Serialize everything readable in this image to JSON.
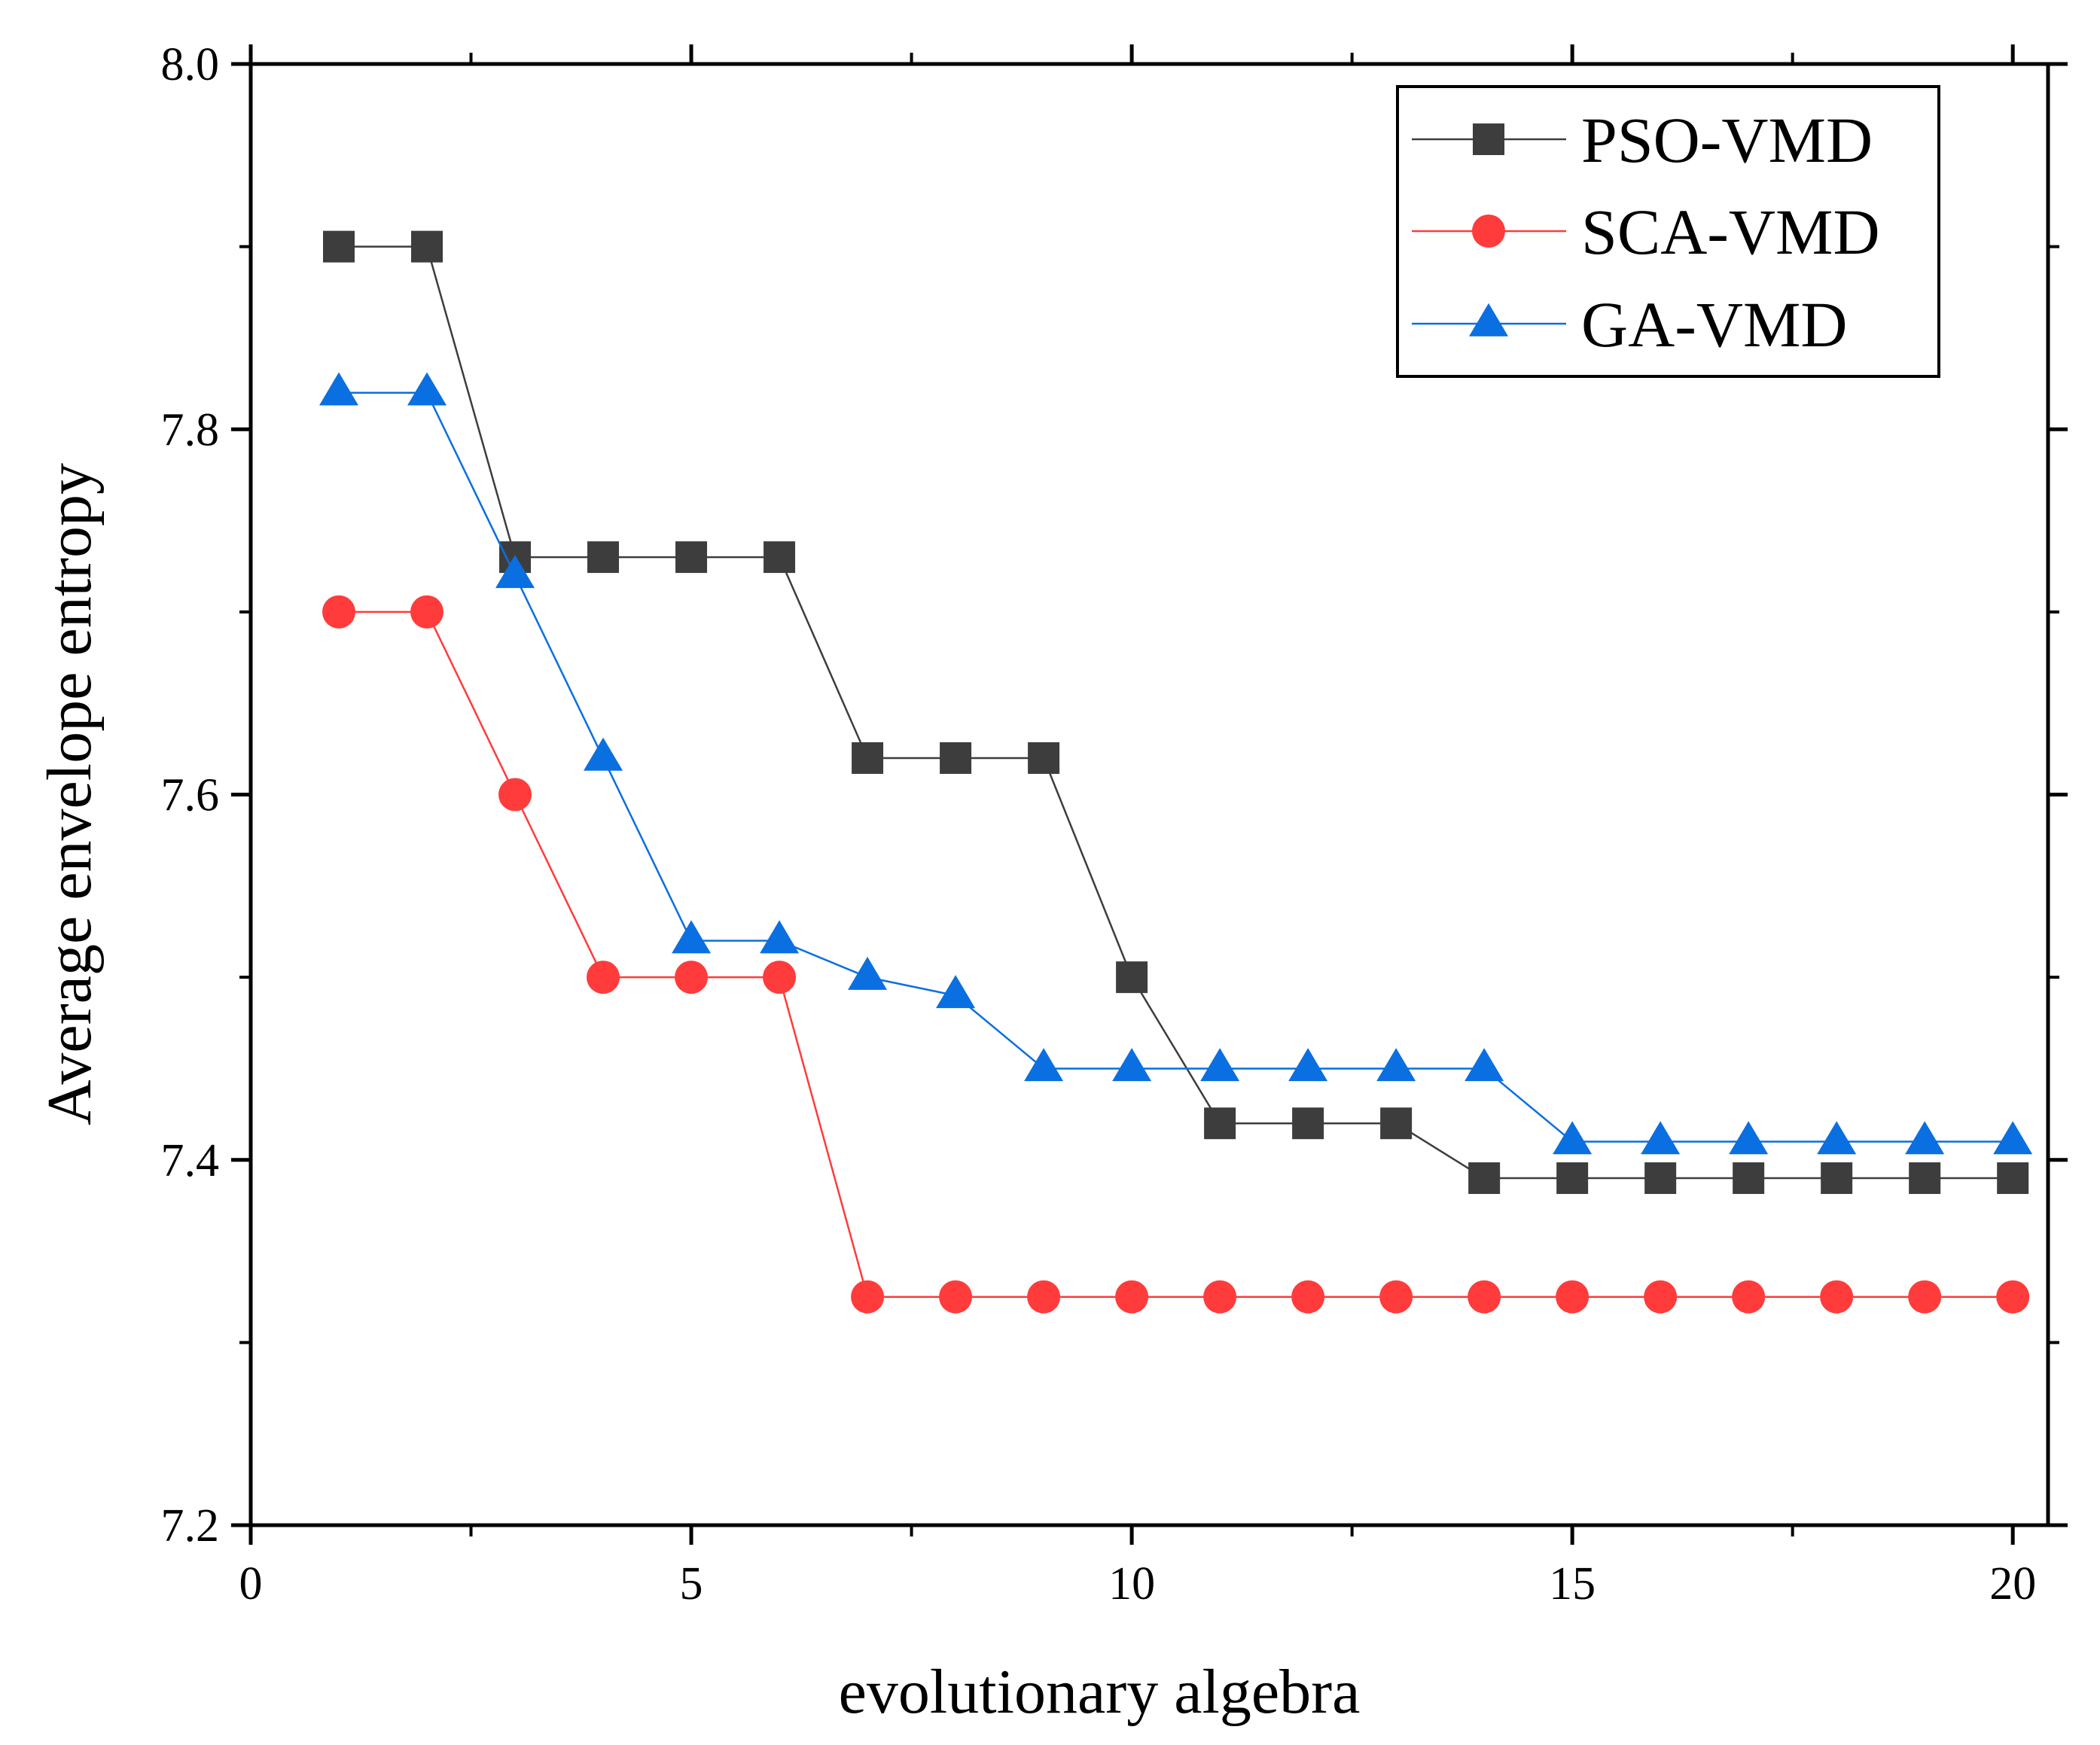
{
  "chart_data": {
    "type": "line",
    "title": "",
    "xlabel": "evolutionary algebra",
    "ylabel": "Average envelope entropy",
    "xlim": [
      0,
      20.4
    ],
    "ylim": [
      7.2,
      8.0
    ],
    "xticks": [
      0,
      5,
      10,
      15,
      20
    ],
    "xtick_labels": [
      "0",
      "5",
      "10",
      "15",
      "20"
    ],
    "xminor": [
      2.5,
      7.5,
      12.5,
      17.5
    ],
    "yticks": [
      7.2,
      7.4,
      7.6,
      7.8,
      8.0
    ],
    "ytick_labels": [
      "7.2",
      "7.4",
      "7.6",
      "7.8",
      "8.0"
    ],
    "yminor": [
      7.3,
      7.5,
      7.7,
      7.9
    ],
    "grid": false,
    "legend_position": "top-right",
    "x": [
      1,
      2,
      3,
      4,
      5,
      6,
      7,
      8,
      9,
      10,
      11,
      12,
      13,
      14,
      15,
      16,
      17,
      18,
      19,
      20
    ],
    "series": [
      {
        "name": "PSO-VMD",
        "color": "#3d3d3d",
        "marker": "square",
        "values": [
          7.9,
          7.9,
          7.73,
          7.73,
          7.73,
          7.73,
          7.62,
          7.62,
          7.62,
          7.5,
          7.42,
          7.42,
          7.42,
          7.39,
          7.39,
          7.39,
          7.39,
          7.39,
          7.39,
          7.39
        ]
      },
      {
        "name": "SCA-VMD",
        "color": "#ff3b3b",
        "marker": "circle",
        "values": [
          7.7,
          7.7,
          7.6,
          7.5,
          7.5,
          7.5,
          7.325,
          7.325,
          7.325,
          7.325,
          7.325,
          7.325,
          7.325,
          7.325,
          7.325,
          7.325,
          7.325,
          7.325,
          7.325,
          7.325
        ]
      },
      {
        "name": "GA-VMD",
        "color": "#0a6fe0",
        "marker": "triangle",
        "values": [
          7.82,
          7.82,
          7.72,
          7.62,
          7.52,
          7.52,
          7.5,
          7.49,
          7.45,
          7.45,
          7.45,
          7.45,
          7.45,
          7.45,
          7.41,
          7.41,
          7.41,
          7.41,
          7.41,
          7.41
        ]
      }
    ]
  }
}
